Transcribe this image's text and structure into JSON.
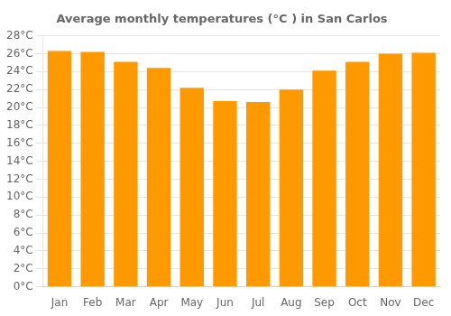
{
  "chart_data": {
    "type": "bar",
    "title": "Average monthly temperatures (°C ) in San Carlos",
    "categories": [
      "Jan",
      "Feb",
      "Mar",
      "Apr",
      "May",
      "Jun",
      "Jul",
      "Aug",
      "Sep",
      "Oct",
      "Nov",
      "Dec"
    ],
    "values": [
      26.3,
      26.2,
      25.1,
      24.4,
      22.2,
      20.7,
      20.6,
      22.0,
      24.1,
      25.1,
      26.0,
      26.1
    ],
    "color": "#FF9900",
    "ylim": [
      0,
      28
    ],
    "yticks": [
      {
        "value": 0,
        "label": "0°C"
      },
      {
        "value": 2,
        "label": "2°C"
      },
      {
        "value": 4,
        "label": "4°C"
      },
      {
        "value": 6,
        "label": "6°C"
      },
      {
        "value": 8,
        "label": "8°C"
      },
      {
        "value": 10,
        "label": "10°C"
      },
      {
        "value": 12,
        "label": "12°C"
      },
      {
        "value": 14,
        "label": "14°C"
      },
      {
        "value": 16,
        "label": "16°C"
      },
      {
        "value": 18,
        "label": "18°C"
      },
      {
        "value": 20,
        "label": "20°C"
      },
      {
        "value": 22,
        "label": "22°C"
      },
      {
        "value": 24,
        "label": "24°C"
      },
      {
        "value": 26,
        "label": "26°C"
      },
      {
        "value": 28,
        "label": "28°C"
      }
    ],
    "grid": true
  }
}
